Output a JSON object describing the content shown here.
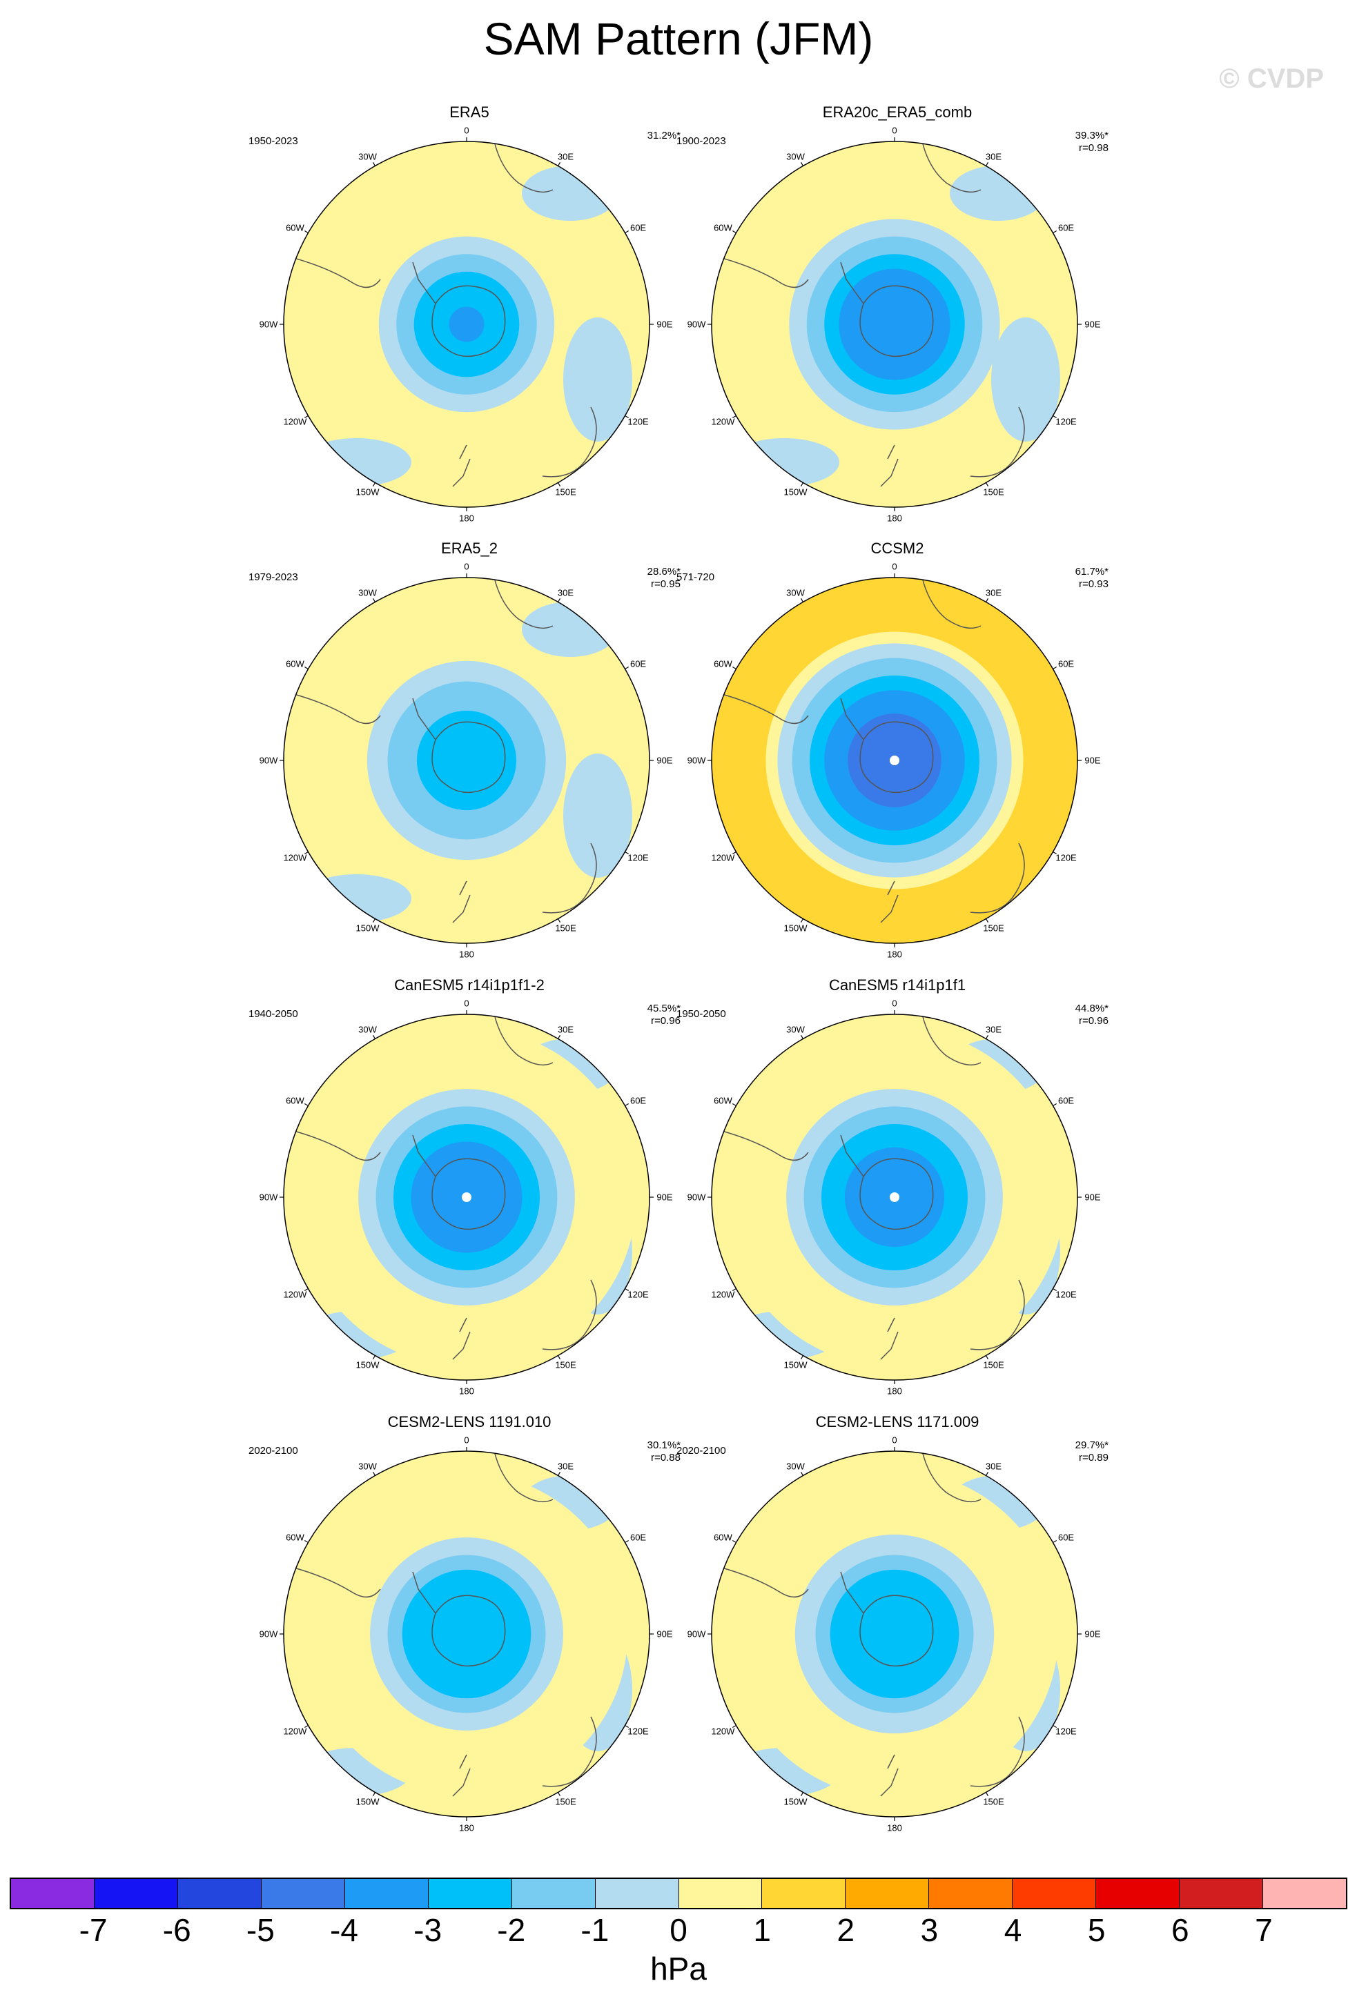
{
  "title": "SAM Pattern (JFM)",
  "watermark": "© CVDP",
  "units": "hPa",
  "colorbar": {
    "levels": [
      "-7",
      "-6",
      "-5",
      "-4",
      "-3",
      "-2",
      "-1",
      "0",
      "1",
      "2",
      "3",
      "4",
      "5",
      "6",
      "7"
    ],
    "colors": [
      "#8a2be2",
      "#1414f5",
      "#2346de",
      "#3a7ae8",
      "#1e9bf5",
      "#00c0fa",
      "#78ccf2",
      "#b4dcf0",
      "#fff59a",
      "#ffd633",
      "#ffaa00",
      "#ff7a00",
      "#ff3c00",
      "#e60000",
      "#d21e1e",
      "#ffb4b4"
    ]
  },
  "lon_labels": [
    "0",
    "30E",
    "60E",
    "90E",
    "120E",
    "150E",
    "180",
    "150W",
    "120W",
    "90W",
    "60W",
    "30W"
  ],
  "panels": [
    {
      "title": "ERA5",
      "period": "1950-2023",
      "pct": "31.2%*",
      "corr": "",
      "center_dot": false,
      "regions": [
        {
          "shape": "ring",
          "lvl": -1,
          "r": 0.3
        },
        {
          "shape": "ring",
          "lvl": -2,
          "r": 0.24
        },
        {
          "shape": "ring",
          "lvl": -3,
          "r": 0.18
        },
        {
          "shape": "ring",
          "lvl": -4,
          "r": 0.06
        }
      ]
    },
    {
      "title": "ERA20c_ERA5_comb",
      "period": "1900-2023",
      "pct": "39.3%*",
      "corr": "r=0.98",
      "center_dot": false,
      "regions": [
        {
          "shape": "ring",
          "lvl": -1,
          "r": 0.36
        },
        {
          "shape": "ring",
          "lvl": -2,
          "r": 0.3
        },
        {
          "shape": "ring",
          "lvl": -3,
          "r": 0.24
        },
        {
          "shape": "ring",
          "lvl": -4,
          "r": 0.19
        }
      ]
    },
    {
      "title": "ERA5_2",
      "period": "1979-2023",
      "pct": "28.6%*",
      "corr": "r=0.95",
      "center_dot": false,
      "regions": [
        {
          "shape": "ring",
          "lvl": -1,
          "r": 0.34
        },
        {
          "shape": "ring",
          "lvl": -2,
          "r": 0.27
        },
        {
          "shape": "ring",
          "lvl": -3,
          "r": 0.17
        }
      ]
    },
    {
      "title": "CCSM2",
      "period": "571-720",
      "pct": "61.7%*",
      "corr": "r=0.93",
      "center_dot": true,
      "regions": [
        {
          "shape": "ring",
          "lvl": 2,
          "r": 0.66
        },
        {
          "shape": "ring",
          "lvl": 1,
          "r": 0.44
        },
        {
          "shape": "ring",
          "lvl": -1,
          "r": 0.4
        },
        {
          "shape": "ring",
          "lvl": -2,
          "r": 0.35
        },
        {
          "shape": "ring",
          "lvl": -3,
          "r": 0.29
        },
        {
          "shape": "ring",
          "lvl": -4,
          "r": 0.24
        },
        {
          "shape": "ring",
          "lvl": -5,
          "r": 0.16
        }
      ]
    },
    {
      "title": "CanESM5 r14i1p1f1-2",
      "period": "1940-2050",
      "pct": "45.5%*",
      "corr": "r=0.96",
      "center_dot": true,
      "regions": [
        {
          "shape": "ring",
          "lvl": 1,
          "r": 0.58
        },
        {
          "shape": "ring",
          "lvl": -1,
          "r": 0.37
        },
        {
          "shape": "ring",
          "lvl": -2,
          "r": 0.31
        },
        {
          "shape": "ring",
          "lvl": -3,
          "r": 0.25
        },
        {
          "shape": "ring",
          "lvl": -4,
          "r": 0.19
        }
      ]
    },
    {
      "title": "CanESM5 r14i1p1f1",
      "period": "1950-2050",
      "pct": "44.8%*",
      "corr": "r=0.96",
      "center_dot": true,
      "regions": [
        {
          "shape": "ring",
          "lvl": 1,
          "r": 0.58
        },
        {
          "shape": "ring",
          "lvl": -1,
          "r": 0.37
        },
        {
          "shape": "ring",
          "lvl": -2,
          "r": 0.31
        },
        {
          "shape": "ring",
          "lvl": -3,
          "r": 0.25
        },
        {
          "shape": "ring",
          "lvl": -4,
          "r": 0.17
        }
      ]
    },
    {
      "title": "CESM2-LENS 1191.010",
      "period": "2020-2100",
      "pct": "30.1%*",
      "corr": "r=0.88",
      "center_dot": false,
      "regions": [
        {
          "shape": "ring",
          "lvl": 1,
          "r": 0.55
        },
        {
          "shape": "ring",
          "lvl": -1,
          "r": 0.33
        },
        {
          "shape": "ring",
          "lvl": -2,
          "r": 0.27
        },
        {
          "shape": "ring",
          "lvl": -3,
          "r": 0.22
        }
      ]
    },
    {
      "title": "CESM2-LENS 1171.009",
      "period": "2020-2100",
      "pct": "29.7%*",
      "corr": "r=0.89",
      "center_dot": false,
      "regions": [
        {
          "shape": "ring",
          "lvl": 1,
          "r": 0.56
        },
        {
          "shape": "ring",
          "lvl": -1,
          "r": 0.34
        },
        {
          "shape": "ring",
          "lvl": -2,
          "r": 0.27
        },
        {
          "shape": "ring",
          "lvl": -3,
          "r": 0.22
        }
      ]
    }
  ]
}
